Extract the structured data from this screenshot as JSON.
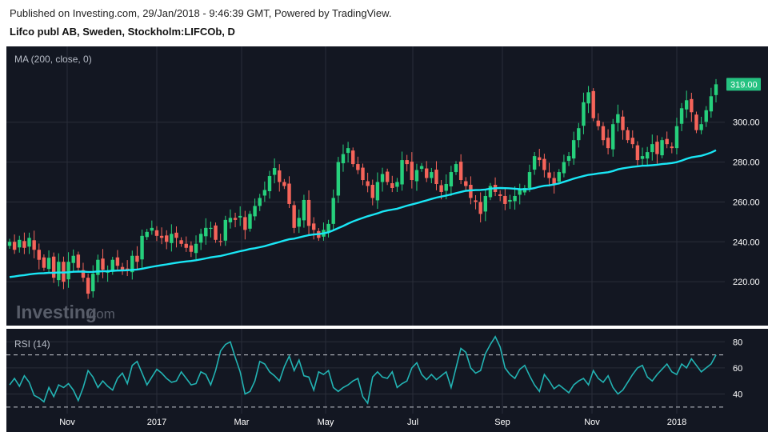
{
  "header": {
    "published": "Published on Investing.com, 29/Jan/2018 - 9:46:39 GMT, Powered by TradingView.",
    "symbol": "Lifco publ AB, Sweden, Stockholm:LIFCOb, D"
  },
  "colors": {
    "background": "#131722",
    "up": "#26d07c",
    "down": "#f5645a",
    "ma": "#19e6f5",
    "rsi": "#22b3b3",
    "axis_text": "#ffffff",
    "price_badge": "#26c281"
  },
  "watermark": {
    "brand": "Investing",
    "suffix": ".com"
  },
  "chart_data": [
    {
      "type": "candlestick",
      "title": "MA (200, close, 0)",
      "ylim": [
        198,
        338
      ],
      "yticks": [
        220,
        240,
        260,
        280,
        300
      ],
      "ytick_labels": [
        "220.00",
        "240.00",
        "260.00",
        "280.00",
        "300.00"
      ],
      "last_price": 319,
      "last_price_label": "319.00",
      "x_labels": [
        "Nov",
        "2017",
        "Mar",
        "May",
        "Jul",
        "Sep",
        "Nov",
        "2018"
      ],
      "close": [
        240,
        236,
        241,
        237,
        242,
        236,
        231,
        227,
        232,
        222,
        230,
        220,
        230,
        233,
        227,
        222,
        214,
        224,
        231,
        226,
        225,
        231,
        228,
        226,
        226,
        233,
        230,
        243,
        245,
        247,
        243,
        242,
        240,
        244,
        242,
        239,
        237,
        235,
        239,
        244,
        247,
        247,
        241,
        240,
        251,
        252,
        251,
        253,
        246,
        254,
        258,
        262,
        266,
        273,
        277,
        270,
        268,
        259,
        247,
        252,
        261,
        248,
        246,
        242,
        246,
        249,
        262,
        280,
        284,
        287,
        279,
        276,
        271,
        268,
        262,
        270,
        274,
        270,
        267,
        270,
        281,
        279,
        271,
        276,
        278,
        272,
        275,
        269,
        265,
        269,
        275,
        279,
        271,
        268,
        262,
        260,
        254,
        263,
        268,
        265,
        263,
        259,
        261,
        263,
        266,
        267,
        275,
        283,
        281,
        276,
        272,
        269,
        275,
        280,
        283,
        291,
        297,
        310,
        315,
        302,
        298,
        291,
        287,
        299,
        304,
        296,
        291,
        289,
        281,
        283,
        285,
        289,
        284,
        291,
        289,
        287,
        298,
        307,
        311,
        305,
        296,
        299,
        306,
        313,
        319
      ]
    },
    {
      "type": "line",
      "title": "RSI (14)",
      "ylim": [
        25,
        90
      ],
      "yticks": [
        40,
        60,
        80
      ],
      "ytick_labels": [
        "40",
        "60",
        "80"
      ],
      "reference_lines": [
        30,
        70
      ],
      "values": [
        47,
        52,
        46,
        54,
        49,
        39,
        37,
        34,
        45,
        38,
        47,
        45,
        48,
        43,
        35,
        45,
        58,
        53,
        45,
        50,
        46,
        43,
        52,
        56,
        48,
        62,
        65,
        56,
        47,
        53,
        59,
        56,
        52,
        49,
        50,
        57,
        52,
        47,
        48,
        57,
        55,
        47,
        58,
        73,
        78,
        80,
        68,
        57,
        40,
        42,
        50,
        65,
        63,
        57,
        54,
        50,
        61,
        69,
        58,
        66,
        54,
        53,
        43,
        57,
        55,
        58,
        45,
        42,
        45,
        47,
        50,
        52,
        38,
        33,
        53,
        57,
        53,
        52,
        57,
        45,
        48,
        50,
        60,
        64,
        55,
        51,
        55,
        51,
        54,
        57,
        45,
        60,
        75,
        72,
        60,
        56,
        58,
        71,
        78,
        84,
        76,
        60,
        55,
        52,
        59,
        62,
        54,
        47,
        42,
        55,
        50,
        44,
        47,
        44,
        41,
        47,
        50,
        52,
        47,
        58,
        52,
        49,
        54,
        45,
        40,
        43,
        49,
        55,
        60,
        62,
        53,
        50,
        55,
        59,
        63,
        57,
        55,
        63,
        60,
        67,
        62,
        57,
        60,
        63,
        70
      ]
    }
  ]
}
